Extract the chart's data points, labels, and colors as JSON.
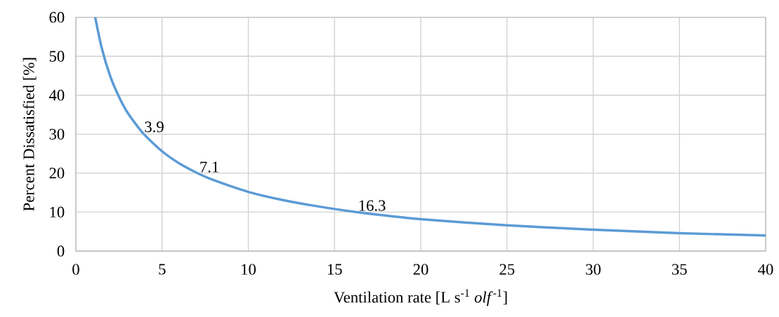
{
  "chart_data": {
    "type": "line",
    "xlabel": "Ventilation rate [L s$^{-1}$ *olf*$^{-1}$]",
    "ylabel": "Percent Dissatisfied [%]",
    "x": [
      1.12,
      1.5,
      2,
      2.5,
      3,
      3.9,
      5,
      6,
      7.1,
      8,
      10,
      12,
      14,
      16.3,
      20,
      25,
      30,
      35,
      40
    ],
    "series": [
      {
        "color": "#5b9bd5",
        "values": [
          60,
          52.1,
          44.8,
          39.6,
          35.5,
          30.2,
          25.6,
          22.5,
          19.9,
          18.2,
          15.2,
          13.1,
          11.5,
          10.0,
          8.2,
          6.6,
          5.5,
          4.6,
          4.0
        ]
      }
    ],
    "annotations": [
      {
        "text": "3.9",
        "x": 3.9,
        "y": 30.2
      },
      {
        "text": "7.1",
        "x": 7.1,
        "y": 19.9
      },
      {
        "text": "16.3",
        "x": 16.3,
        "y": 10.0
      }
    ],
    "xlim": [
      0,
      40
    ],
    "ylim": [
      0,
      60
    ],
    "xticks": [
      0,
      5,
      10,
      15,
      20,
      25,
      30,
      35,
      40
    ],
    "yticks": [
      0,
      10,
      20,
      30,
      40,
      50,
      60
    ],
    "grid": true,
    "marker": "none",
    "line_style": "solid"
  }
}
